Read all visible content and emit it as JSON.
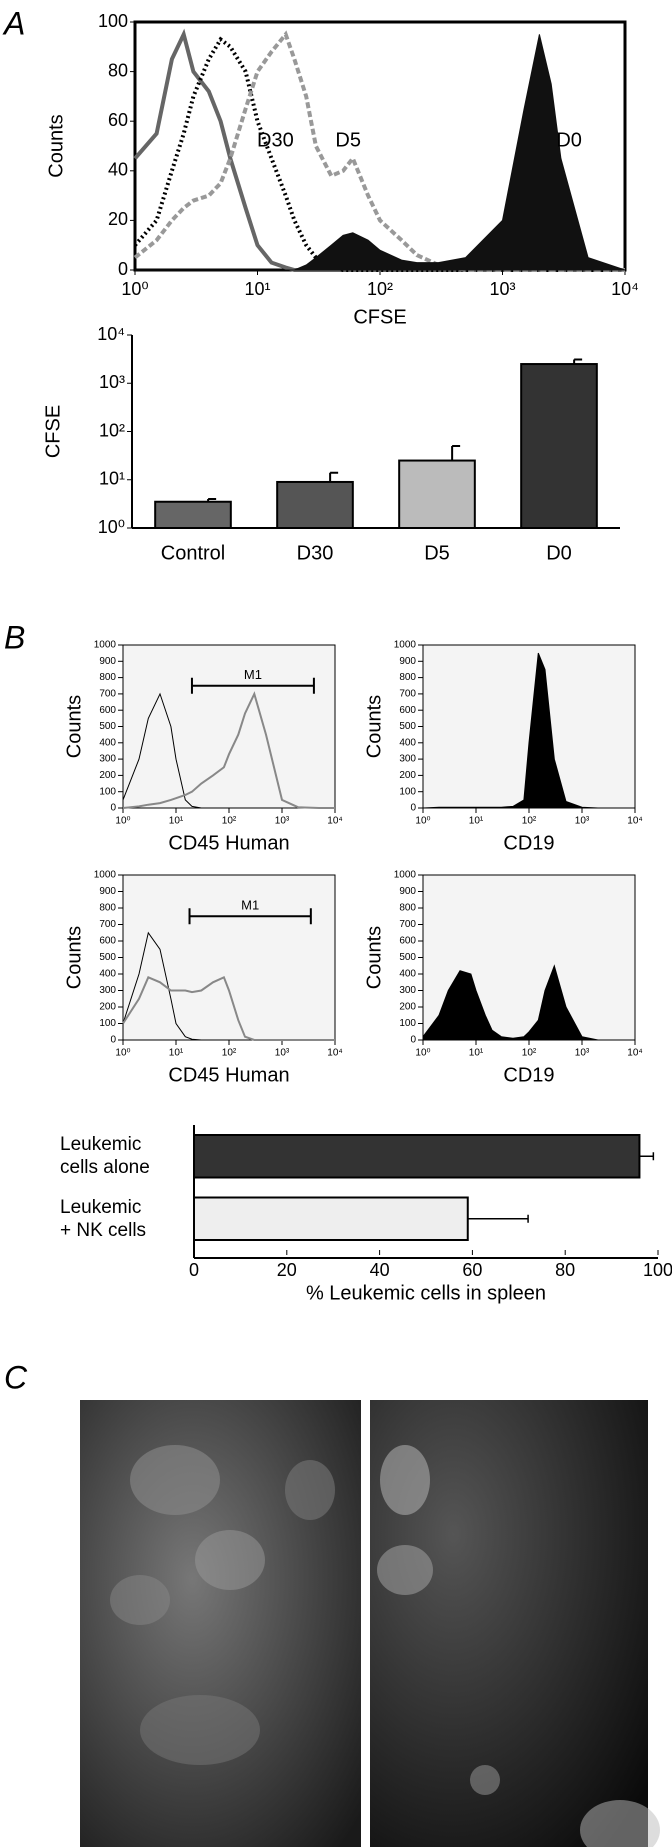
{
  "panels": [
    "A",
    "B",
    "C"
  ],
  "chart_data": [
    {
      "type": "line",
      "xlabel": "CFSE",
      "ylabel": "Counts",
      "xlog": true,
      "xlim": [
        1,
        10000
      ],
      "ylim": [
        0,
        100
      ],
      "xticks": [
        {
          "value": 1,
          "label": "10⁰"
        },
        {
          "value": 10,
          "label": "10¹"
        },
        {
          "value": 100,
          "label": "10²"
        },
        {
          "value": 1000,
          "label": "10³"
        },
        {
          "value": 10000,
          "label": "10⁴"
        }
      ],
      "yticks": [
        0,
        20,
        40,
        60,
        80,
        100
      ],
      "x": [
        1,
        1.5,
        2,
        2.5,
        3,
        4,
        5,
        6,
        8,
        10,
        13,
        17,
        20,
        25,
        30,
        40,
        50,
        60,
        80,
        100,
        150,
        200,
        300,
        500,
        1000,
        1500,
        2000,
        2500,
        3000,
        5000,
        10000
      ],
      "series": [
        {
          "color": "#666666",
          "style": "solid",
          "values": [
            45,
            55,
            85,
            95,
            80,
            72,
            60,
            45,
            25,
            10,
            3,
            1,
            0,
            0,
            0,
            0,
            0,
            0,
            0,
            0,
            0,
            0,
            0,
            0,
            0,
            0,
            0,
            0,
            0,
            0,
            0
          ]
        },
        {
          "name": "D30",
          "color": "#000000",
          "style": "dotted",
          "values": [
            10,
            20,
            40,
            55,
            70,
            85,
            93,
            90,
            80,
            60,
            45,
            30,
            20,
            10,
            5,
            2,
            0,
            0,
            0,
            0,
            0,
            0,
            0,
            0,
            0,
            0,
            0,
            0,
            0,
            0,
            0
          ]
        },
        {
          "name": "D5",
          "color": "#999999",
          "style": "dashed",
          "values": [
            5,
            12,
            20,
            25,
            28,
            30,
            35,
            45,
            65,
            80,
            88,
            95,
            85,
            70,
            50,
            38,
            40,
            45,
            30,
            20,
            12,
            6,
            2,
            0,
            0,
            0,
            0,
            0,
            0,
            0,
            0
          ]
        },
        {
          "name": "D0",
          "color": "#111111",
          "style": "area",
          "values": [
            0,
            0,
            0,
            0,
            0,
            0,
            0,
            0,
            0,
            0,
            0,
            0,
            0,
            2,
            5,
            10,
            14,
            15,
            12,
            8,
            4,
            3,
            3,
            5,
            20,
            65,
            95,
            75,
            45,
            5,
            0
          ]
        }
      ]
    },
    {
      "type": "bar",
      "ylabel": "CFSE",
      "ylog": true,
      "ylim": [
        1,
        10000
      ],
      "yticks": [
        {
          "value": 1,
          "label": "10⁰"
        },
        {
          "value": 10,
          "label": "10¹"
        },
        {
          "value": 100,
          "label": "10²"
        },
        {
          "value": 1000,
          "label": "10³"
        },
        {
          "value": 10000,
          "label": "10⁴"
        }
      ],
      "categories": [
        "Control",
        "D30",
        "D5",
        "D0"
      ],
      "values": [
        3.5,
        9,
        25,
        2500
      ],
      "errors": [
        0.5,
        5,
        25,
        600
      ],
      "colors": [
        "#666666",
        "#555555",
        "#bbbbbb",
        "#333333"
      ]
    },
    {
      "type": "line",
      "xlabel": "CD45 Human",
      "ylabel": "Counts",
      "xlog": true,
      "xlim": [
        1,
        10000
      ],
      "ylim": [
        0,
        1000
      ],
      "xticks": [
        {
          "value": 1,
          "label": "10⁰"
        },
        {
          "value": 10,
          "label": "10¹"
        },
        {
          "value": 100,
          "label": "10²"
        },
        {
          "value": 1000,
          "label": "10³"
        },
        {
          "value": 10000,
          "label": "10⁴"
        }
      ],
      "yticks": [
        0,
        100,
        200,
        300,
        400,
        500,
        600,
        700,
        800,
        900,
        1000
      ],
      "gate": {
        "label": "M1",
        "range": [
          20,
          4000
        ]
      },
      "x": [
        1,
        2,
        3,
        5,
        8,
        10,
        15,
        20,
        30,
        50,
        80,
        100,
        150,
        200,
        300,
        500,
        1000,
        2000,
        5000,
        10000
      ],
      "series": [
        {
          "color": "#000000",
          "style": "solid",
          "values": [
            50,
            300,
            550,
            700,
            500,
            300,
            50,
            10,
            0,
            0,
            0,
            0,
            0,
            0,
            0,
            0,
            0,
            0,
            0,
            0
          ]
        },
        {
          "color": "#888888",
          "style": "solid",
          "values": [
            0,
            10,
            20,
            30,
            50,
            60,
            80,
            100,
            150,
            200,
            250,
            330,
            450,
            580,
            700,
            450,
            50,
            5,
            0,
            0
          ]
        }
      ]
    },
    {
      "type": "line",
      "xlabel": "CD19",
      "ylabel": "Counts",
      "xlog": true,
      "xlim": [
        1,
        10000
      ],
      "ylim": [
        0,
        1000
      ],
      "xticks": [
        {
          "value": 1,
          "label": "10⁰"
        },
        {
          "value": 10,
          "label": "10¹"
        },
        {
          "value": 100,
          "label": "10²"
        },
        {
          "value": 1000,
          "label": "10³"
        },
        {
          "value": 10000,
          "label": "10⁴"
        }
      ],
      "yticks": [
        0,
        100,
        200,
        300,
        400,
        500,
        600,
        700,
        800,
        900,
        1000
      ],
      "x": [
        1,
        2,
        3,
        5,
        8,
        10,
        15,
        20,
        30,
        50,
        80,
        100,
        150,
        200,
        300,
        500,
        1000,
        2000,
        5000,
        10000
      ],
      "series": [
        {
          "color": "#000000",
          "style": "area",
          "values": [
            0,
            5,
            5,
            5,
            5,
            5,
            5,
            5,
            5,
            10,
            50,
            400,
            950,
            850,
            300,
            40,
            5,
            0,
            0,
            0
          ]
        }
      ]
    },
    {
      "type": "line",
      "xlabel": "CD45 Human",
      "ylabel": "Counts",
      "xlog": true,
      "xlim": [
        1,
        10000
      ],
      "ylim": [
        0,
        1000
      ],
      "xticks": [
        {
          "value": 1,
          "label": "10⁰"
        },
        {
          "value": 10,
          "label": "10¹"
        },
        {
          "value": 100,
          "label": "10²"
        },
        {
          "value": 1000,
          "label": "10³"
        },
        {
          "value": 10000,
          "label": "10⁴"
        }
      ],
      "yticks": [
        0,
        100,
        200,
        300,
        400,
        500,
        600,
        700,
        800,
        900,
        1000
      ],
      "gate": {
        "label": "M1",
        "range": [
          18,
          3500
        ]
      },
      "x": [
        1,
        2,
        3,
        5,
        8,
        10,
        15,
        20,
        30,
        50,
        80,
        100,
        150,
        200,
        300,
        500,
        1000,
        2000,
        5000,
        10000
      ],
      "series": [
        {
          "color": "#000000",
          "style": "solid",
          "values": [
            100,
            400,
            650,
            550,
            250,
            100,
            20,
            5,
            0,
            0,
            0,
            0,
            0,
            0,
            0,
            0,
            0,
            0,
            0,
            0
          ]
        },
        {
          "color": "#888888",
          "style": "solid",
          "values": [
            100,
            250,
            380,
            350,
            300,
            300,
            300,
            290,
            300,
            350,
            380,
            300,
            120,
            20,
            0,
            0,
            0,
            0,
            0,
            0
          ]
        }
      ]
    },
    {
      "type": "line",
      "xlabel": "CD19",
      "ylabel": "Counts",
      "xlog": true,
      "xlim": [
        1,
        10000
      ],
      "ylim": [
        0,
        1000
      ],
      "xticks": [
        {
          "value": 1,
          "label": "10⁰"
        },
        {
          "value": 10,
          "label": "10¹"
        },
        {
          "value": 100,
          "label": "10²"
        },
        {
          "value": 1000,
          "label": "10³"
        },
        {
          "value": 10000,
          "label": "10⁴"
        }
      ],
      "yticks": [
        0,
        100,
        200,
        300,
        400,
        500,
        600,
        700,
        800,
        900,
        1000
      ],
      "x": [
        1,
        2,
        3,
        5,
        8,
        10,
        15,
        20,
        30,
        50,
        80,
        100,
        150,
        200,
        300,
        500,
        1000,
        2000,
        5000,
        10000
      ],
      "series": [
        {
          "color": "#000000",
          "style": "area",
          "values": [
            20,
            150,
            300,
            420,
            400,
            300,
            150,
            60,
            20,
            10,
            20,
            50,
            120,
            300,
            450,
            200,
            20,
            0,
            0,
            0
          ]
        }
      ]
    },
    {
      "type": "bar",
      "horizontal": true,
      "xlabel": "% Leukemic cells in spleen",
      "xlim": [
        0,
        100
      ],
      "xticks": [
        0,
        20,
        40,
        60,
        80,
        100
      ],
      "categories": [
        "Leukemic\ncells alone",
        "Leukemic\n+ NK cells"
      ],
      "values": [
        96,
        59
      ],
      "errors": [
        3,
        13
      ],
      "colors": [
        "#333333",
        "#eeeeee"
      ]
    }
  ]
}
